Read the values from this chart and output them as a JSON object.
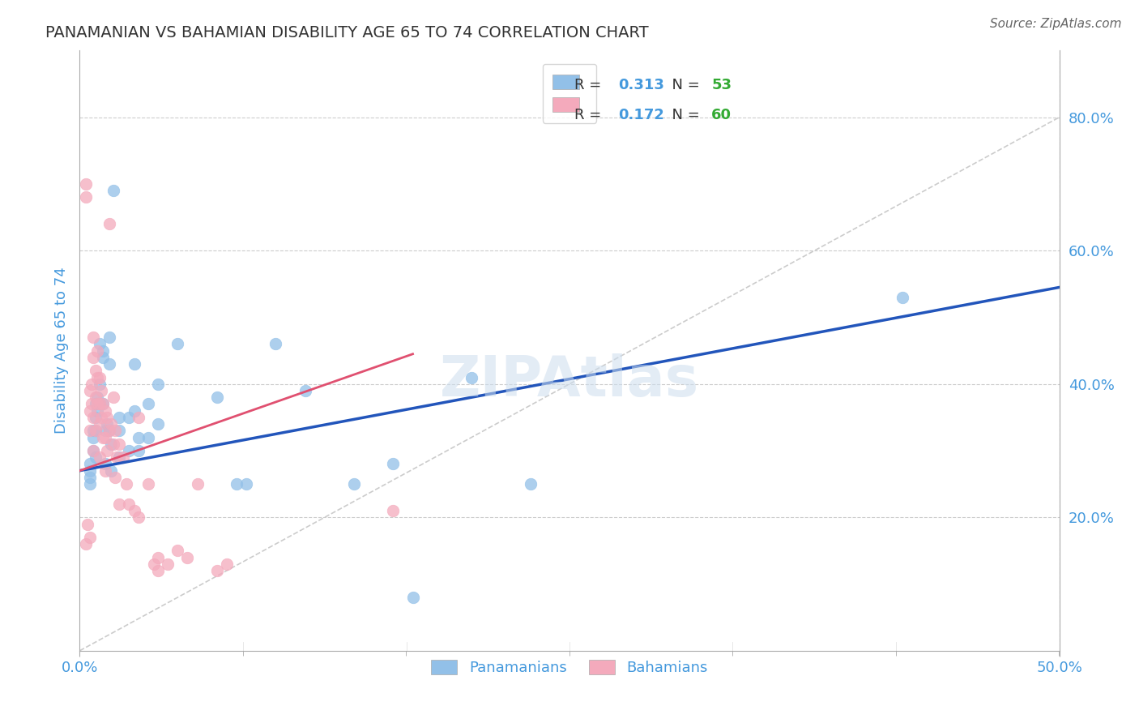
{
  "title": "PANAMANIAN VS BAHAMIAN DISABILITY AGE 65 TO 74 CORRELATION CHART",
  "source": "Source: ZipAtlas.com",
  "ylabel": "Disability Age 65 to 74",
  "xlim": [
    0.0,
    0.5
  ],
  "ylim": [
    0.0,
    0.9
  ],
  "R_blue": 0.313,
  "N_blue": 53,
  "R_pink": 0.172,
  "N_pink": 60,
  "blue_color": "#92C0E8",
  "pink_color": "#F4AABC",
  "line_blue_color": "#2255BB",
  "line_pink_color": "#E05070",
  "diag_color": "#CCCCCC",
  "grid_color": "#CCCCCC",
  "title_color": "#333333",
  "axis_label_color": "#4499DD",
  "legend_r_color": "#4499DD",
  "legend_n_color": "#33AA33",
  "blue_points_x": [
    0.005,
    0.005,
    0.005,
    0.005,
    0.007,
    0.007,
    0.007,
    0.008,
    0.008,
    0.008,
    0.008,
    0.009,
    0.009,
    0.01,
    0.01,
    0.01,
    0.012,
    0.012,
    0.012,
    0.013,
    0.013,
    0.014,
    0.015,
    0.015,
    0.015,
    0.016,
    0.016,
    0.017,
    0.02,
    0.02,
    0.02,
    0.025,
    0.025,
    0.028,
    0.028,
    0.03,
    0.03,
    0.035,
    0.035,
    0.04,
    0.04,
    0.05,
    0.07,
    0.08,
    0.085,
    0.1,
    0.115,
    0.14,
    0.16,
    0.17,
    0.2,
    0.23,
    0.42
  ],
  "blue_points_y": [
    0.28,
    0.27,
    0.26,
    0.25,
    0.33,
    0.32,
    0.3,
    0.37,
    0.35,
    0.33,
    0.29,
    0.38,
    0.36,
    0.46,
    0.4,
    0.37,
    0.45,
    0.44,
    0.37,
    0.33,
    0.28,
    0.34,
    0.47,
    0.43,
    0.33,
    0.31,
    0.27,
    0.69,
    0.35,
    0.33,
    0.29,
    0.35,
    0.3,
    0.43,
    0.36,
    0.32,
    0.3,
    0.37,
    0.32,
    0.4,
    0.34,
    0.46,
    0.38,
    0.25,
    0.25,
    0.46,
    0.39,
    0.25,
    0.28,
    0.08,
    0.41,
    0.25,
    0.53
  ],
  "pink_points_x": [
    0.003,
    0.003,
    0.003,
    0.004,
    0.005,
    0.005,
    0.005,
    0.005,
    0.006,
    0.006,
    0.007,
    0.007,
    0.007,
    0.007,
    0.008,
    0.008,
    0.008,
    0.009,
    0.009,
    0.009,
    0.01,
    0.01,
    0.01,
    0.01,
    0.011,
    0.011,
    0.012,
    0.012,
    0.013,
    0.013,
    0.013,
    0.014,
    0.014,
    0.015,
    0.015,
    0.016,
    0.017,
    0.017,
    0.018,
    0.018,
    0.019,
    0.02,
    0.02,
    0.022,
    0.024,
    0.025,
    0.028,
    0.03,
    0.03,
    0.035,
    0.038,
    0.04,
    0.04,
    0.045,
    0.05,
    0.055,
    0.06,
    0.07,
    0.075,
    0.16
  ],
  "pink_points_y": [
    0.7,
    0.68,
    0.16,
    0.19,
    0.39,
    0.36,
    0.33,
    0.17,
    0.4,
    0.37,
    0.47,
    0.44,
    0.35,
    0.3,
    0.42,
    0.38,
    0.33,
    0.45,
    0.41,
    0.37,
    0.41,
    0.37,
    0.34,
    0.29,
    0.39,
    0.35,
    0.37,
    0.32,
    0.36,
    0.32,
    0.27,
    0.35,
    0.3,
    0.64,
    0.33,
    0.34,
    0.38,
    0.31,
    0.33,
    0.26,
    0.29,
    0.31,
    0.22,
    0.29,
    0.25,
    0.22,
    0.21,
    0.2,
    0.35,
    0.25,
    0.13,
    0.14,
    0.12,
    0.13,
    0.15,
    0.14,
    0.25,
    0.12,
    0.13,
    0.21
  ],
  "blue_line_x": [
    0.0,
    0.5
  ],
  "blue_line_y": [
    0.27,
    0.545
  ],
  "pink_line_x": [
    0.0,
    0.17
  ],
  "pink_line_y": [
    0.27,
    0.445
  ],
  "diag_line_x": [
    0.0,
    0.5
  ],
  "diag_line_y": [
    0.0,
    0.8
  ]
}
